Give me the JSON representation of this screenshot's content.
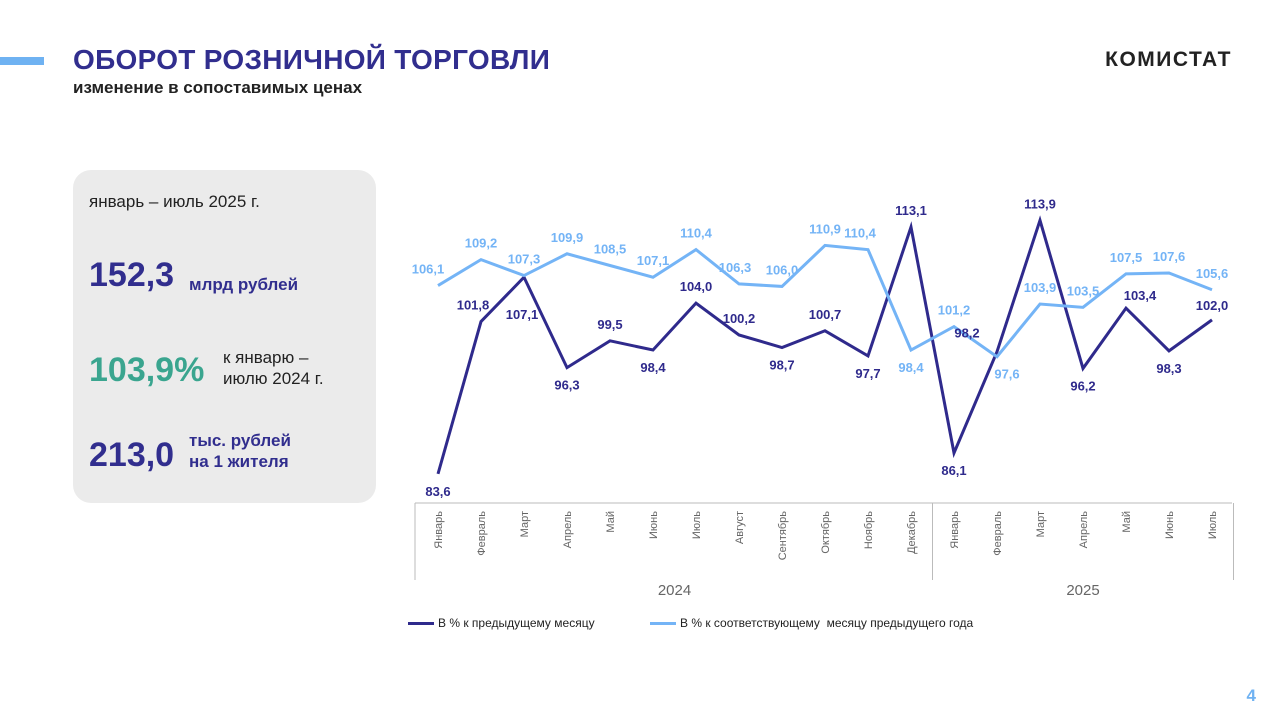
{
  "header": {
    "title": "ОБОРОТ РОЗНИЧНОЙ ТОРГОВЛИ",
    "subtitle": "изменение в сопоставимых ценах",
    "logo": "КОМИСТАТ",
    "page": "4"
  },
  "summary": {
    "period": "январь – июль 2025 г.",
    "total_value": "152,3",
    "total_unit": "млрд рублей",
    "index_value": "103,9%",
    "index_unit_1": "к январю –",
    "index_unit_2": "июлю 2024 г.",
    "per_capita_value": "213,0",
    "per_capita_unit_1": "тыс. рублей",
    "per_capita_unit_2": "на 1 жителя"
  },
  "colors": {
    "dark": "#2f2a8c",
    "light": "#74b4f6",
    "teal": "#3aa58f"
  },
  "chart_data": {
    "type": "line",
    "categories": [
      "Январь",
      "Февраль",
      "Март",
      "Апрель",
      "Май",
      "Июнь",
      "Июль",
      "Август",
      "Сентябрь",
      "Октябрь",
      "Ноябрь",
      "Декабрь",
      "Январь",
      "Февраль",
      "Март",
      "Апрель",
      "Май",
      "Июнь",
      "Июль"
    ],
    "groups": [
      {
        "label": "2024",
        "count": 12
      },
      {
        "label": "2025",
        "count": 7
      }
    ],
    "series": [
      {
        "name": "В % к предыдущему месяцу",
        "values": [
          83.6,
          101.8,
          107.1,
          96.3,
          99.5,
          98.4,
          104.0,
          100.2,
          98.7,
          100.7,
          97.7,
          113.1,
          86.1,
          98.2,
          113.9,
          96.2,
          103.4,
          98.3,
          102.0
        ],
        "labels": [
          "83,6",
          "101,8",
          "107,1",
          "96,3",
          "99,5",
          "98,4",
          "104,0",
          "100,2",
          "98,7",
          "100,7",
          "97,7",
          "113,1",
          "86,1",
          "98,2",
          "113,9",
          "96,2",
          "103,4",
          "98,3",
          "102,0"
        ]
      },
      {
        "name": "В % к соответствующему  месяцу предыдущего года",
        "values": [
          106.1,
          109.2,
          107.3,
          109.9,
          108.5,
          107.1,
          110.4,
          106.3,
          106.0,
          110.9,
          110.4,
          98.4,
          101.2,
          97.6,
          103.9,
          103.5,
          107.5,
          107.6,
          105.6
        ],
        "labels": [
          "106,1",
          "109,2",
          "107,3",
          "109,9",
          "108,5",
          "107,1",
          "110,4",
          "106,3",
          "106,0",
          "110,9",
          "110,4",
          "98,4",
          "101,2",
          "97,6",
          "103,9",
          "103,5",
          "107,5",
          "107,6",
          "105,6"
        ]
      }
    ],
    "ylim": [
      80,
      118
    ],
    "grid": false,
    "legend": "bottom"
  }
}
